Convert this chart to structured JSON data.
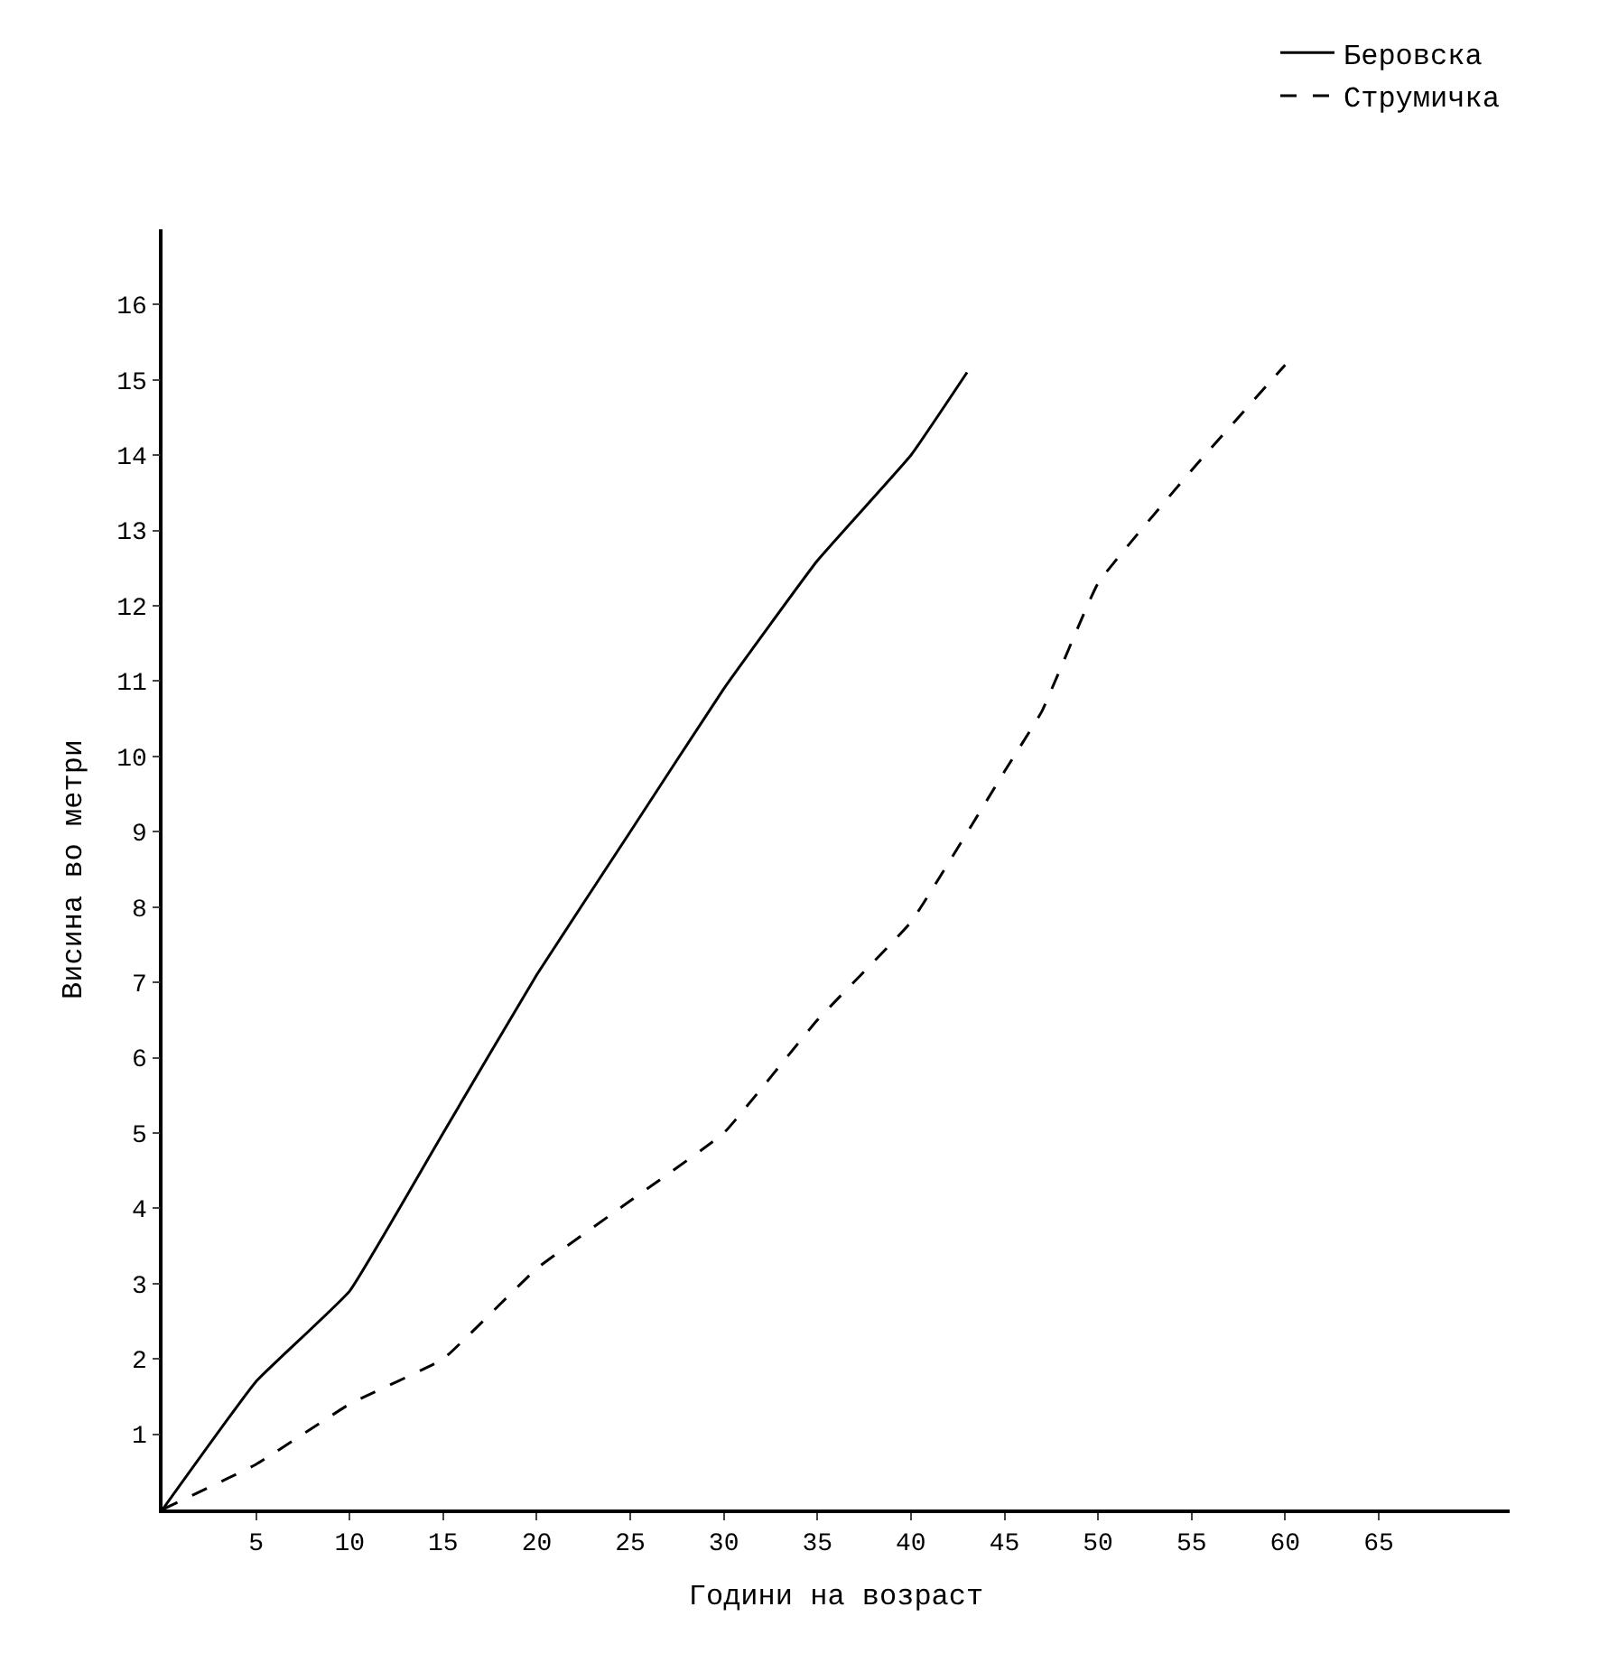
{
  "chart_data": {
    "type": "line",
    "xlabel": "Години на возраст",
    "ylabel": "Висина во метри",
    "xlim": [
      0,
      72
    ],
    "ylim": [
      0,
      17
    ],
    "xticks": [
      5,
      10,
      15,
      20,
      25,
      30,
      35,
      40,
      45,
      50,
      55,
      60,
      65
    ],
    "yticks": [
      1,
      2,
      3,
      4,
      5,
      6,
      7,
      8,
      9,
      10,
      11,
      12,
      13,
      14,
      15,
      16
    ],
    "legend": "top right",
    "marker": "none",
    "series": [
      {
        "name": "Беровска",
        "color": "#000000",
        "line_style": "solid",
        "x": [
          0,
          5,
          10,
          15,
          20,
          25,
          30,
          35,
          40,
          43
        ],
        "values": [
          0,
          1.7,
          2.9,
          5.0,
          7.1,
          9.0,
          10.9,
          12.6,
          14.0,
          15.1
        ]
      },
      {
        "name": "Струмичка",
        "color": "#000000",
        "line_style": "dashed",
        "x": [
          0,
          5,
          10,
          15,
          20,
          25,
          30,
          35,
          40,
          45,
          47,
          50,
          55,
          60
        ],
        "values": [
          0,
          0.6,
          1.4,
          2.0,
          3.2,
          4.1,
          5.0,
          6.5,
          7.8,
          9.8,
          10.6,
          12.3,
          13.8,
          15.2
        ]
      }
    ]
  }
}
